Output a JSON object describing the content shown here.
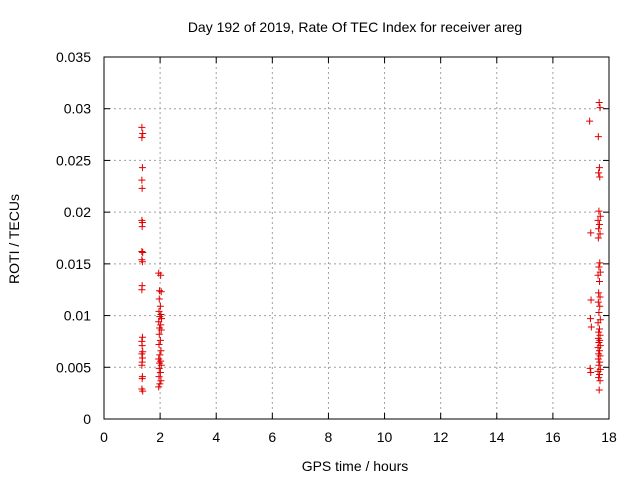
{
  "chart_data": {
    "type": "scatter",
    "title": "Day 192 of 2019, Rate Of TEC Index for receiver areg",
    "xlabel": "GPS time / hours",
    "ylabel": "ROTI / TECUs",
    "xlim": [
      0,
      18
    ],
    "ylim": [
      0,
      0.035
    ],
    "xticks": [
      0,
      2,
      4,
      6,
      8,
      10,
      12,
      14,
      16,
      18
    ],
    "xtick_labels": [
      "0",
      "2",
      "4",
      "6",
      "8",
      "10",
      "12",
      "14",
      "16",
      "18"
    ],
    "yticks": [
      0,
      0.005,
      0.01,
      0.015,
      0.02,
      0.025,
      0.03,
      0.035
    ],
    "ytick_labels": [
      "0",
      "0.005",
      "0.01",
      "0.015",
      "0.02",
      "0.025",
      "0.03",
      "0.035"
    ],
    "grid": true,
    "marker": "+",
    "color": "#e00000",
    "series": [
      {
        "name": "ROTI",
        "points": [
          [
            1.35,
            0.0282
          ],
          [
            1.38,
            0.0276
          ],
          [
            1.35,
            0.0272
          ],
          [
            1.37,
            0.0243
          ],
          [
            1.35,
            0.0231
          ],
          [
            1.36,
            0.0223
          ],
          [
            1.35,
            0.0192
          ],
          [
            1.37,
            0.019
          ],
          [
            1.36,
            0.0186
          ],
          [
            1.35,
            0.0162
          ],
          [
            1.38,
            0.0161
          ],
          [
            1.35,
            0.0154
          ],
          [
            1.37,
            0.0152
          ],
          [
            1.36,
            0.0129
          ],
          [
            1.35,
            0.0125
          ],
          [
            1.37,
            0.0079
          ],
          [
            1.35,
            0.0075
          ],
          [
            1.36,
            0.0071
          ],
          [
            1.38,
            0.0065
          ],
          [
            1.35,
            0.0063
          ],
          [
            1.37,
            0.0059
          ],
          [
            1.36,
            0.0055
          ],
          [
            1.35,
            0.0052
          ],
          [
            1.37,
            0.0041
          ],
          [
            1.36,
            0.0039
          ],
          [
            1.35,
            0.0029
          ],
          [
            1.38,
            0.0027
          ],
          [
            1.95,
            0.0141
          ],
          [
            2.02,
            0.0139
          ],
          [
            1.98,
            0.0124
          ],
          [
            2.04,
            0.0123
          ],
          [
            1.97,
            0.0116
          ],
          [
            2.01,
            0.0109
          ],
          [
            1.96,
            0.0104
          ],
          [
            2.03,
            0.0101
          ],
          [
            1.99,
            0.0099
          ],
          [
            2.05,
            0.0097
          ],
          [
            1.95,
            0.0094
          ],
          [
            2.02,
            0.0091
          ],
          [
            1.98,
            0.0088
          ],
          [
            2.04,
            0.0086
          ],
          [
            1.97,
            0.0082
          ],
          [
            2.01,
            0.0076
          ],
          [
            1.96,
            0.0072
          ],
          [
            2.03,
            0.0066
          ],
          [
            1.99,
            0.0062
          ],
          [
            1.95,
            0.0058
          ],
          [
            2.02,
            0.0056
          ],
          [
            1.98,
            0.0054
          ],
          [
            2.04,
            0.0052
          ],
          [
            1.97,
            0.0049
          ],
          [
            2.01,
            0.0045
          ],
          [
            1.96,
            0.0041
          ],
          [
            2.03,
            0.0037
          ],
          [
            1.99,
            0.0034
          ],
          [
            1.95,
            0.0031
          ],
          [
            17.31,
            0.0288
          ],
          [
            17.65,
            0.0306
          ],
          [
            17.68,
            0.0301
          ],
          [
            17.62,
            0.0273
          ],
          [
            17.66,
            0.0243
          ],
          [
            17.63,
            0.0238
          ],
          [
            17.67,
            0.0234
          ],
          [
            17.35,
            0.018
          ],
          [
            17.64,
            0.0201
          ],
          [
            17.69,
            0.0196
          ],
          [
            17.61,
            0.0192
          ],
          [
            17.66,
            0.0188
          ],
          [
            17.63,
            0.0184
          ],
          [
            17.68,
            0.0179
          ],
          [
            17.62,
            0.0175
          ],
          [
            17.67,
            0.0151
          ],
          [
            17.64,
            0.0147
          ],
          [
            17.69,
            0.0142
          ],
          [
            17.61,
            0.0139
          ],
          [
            17.66,
            0.0133
          ],
          [
            17.63,
            0.0122
          ],
          [
            17.68,
            0.0118
          ],
          [
            17.36,
            0.0115
          ],
          [
            17.62,
            0.0113
          ],
          [
            17.67,
            0.0109
          ],
          [
            17.64,
            0.0103
          ],
          [
            17.34,
            0.0097
          ],
          [
            17.69,
            0.0096
          ],
          [
            17.61,
            0.0093
          ],
          [
            17.37,
            0.0089
          ],
          [
            17.66,
            0.0087
          ],
          [
            17.63,
            0.0084
          ],
          [
            17.68,
            0.0081
          ],
          [
            17.62,
            0.0078
          ],
          [
            17.67,
            0.0076
          ],
          [
            17.64,
            0.0074
          ],
          [
            17.69,
            0.0071
          ],
          [
            17.61,
            0.0069
          ],
          [
            17.66,
            0.0066
          ],
          [
            17.63,
            0.0063
          ],
          [
            17.68,
            0.0061
          ],
          [
            17.62,
            0.0058
          ],
          [
            17.67,
            0.0055
          ],
          [
            17.64,
            0.0052
          ],
          [
            17.33,
            0.0049
          ],
          [
            17.69,
            0.0048
          ],
          [
            17.61,
            0.0046
          ],
          [
            17.35,
            0.0045
          ],
          [
            17.66,
            0.0043
          ],
          [
            17.63,
            0.004
          ],
          [
            17.68,
            0.0037
          ],
          [
            17.65,
            0.0028
          ]
        ]
      }
    ]
  }
}
